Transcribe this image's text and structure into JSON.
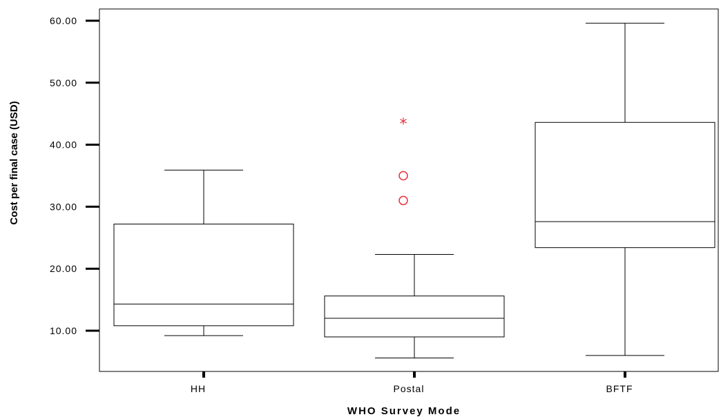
{
  "chart_data": {
    "type": "boxplot",
    "title": "",
    "xlabel": "WHO Survey Mode",
    "ylabel": "Cost per final case (USD)",
    "ylim": [
      3.5,
      62
    ],
    "yticks": [
      10,
      20,
      30,
      40,
      50,
      60
    ],
    "ytick_labels": [
      "10.00",
      "20.00",
      "30.00",
      "40.00",
      "50.00",
      "60.00"
    ],
    "grid": false,
    "categories": [
      "HH",
      "Postal",
      "BFTF"
    ],
    "boxes": [
      {
        "category": "HH",
        "whisker_low": 9.2,
        "q1": 10.8,
        "median": 14.3,
        "q3": 27.2,
        "whisker_high": 35.9,
        "outliers": [],
        "extremes": []
      },
      {
        "category": "Postal",
        "whisker_low": 5.6,
        "q1": 9.0,
        "median": 12.0,
        "q3": 15.6,
        "whisker_high": 22.3,
        "outliers": [
          35.0,
          31.0
        ],
        "extremes": [
          43.5
        ]
      },
      {
        "category": "BFTF",
        "whisker_low": 6.0,
        "q1": 23.4,
        "median": 27.6,
        "q3": 43.6,
        "whisker_high": 59.6,
        "outliers": [],
        "extremes": []
      }
    ],
    "colors": {
      "box_stroke": "#000000",
      "outlier": "#e8303a",
      "axis": "#000000"
    }
  }
}
